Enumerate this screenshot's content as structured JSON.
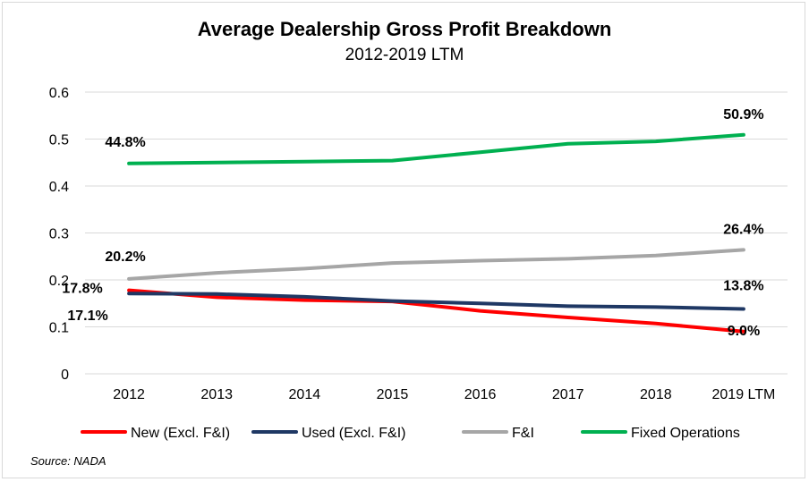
{
  "chart_data": {
    "type": "line",
    "title": "Average Dealership Gross Profit Breakdown",
    "subtitle": "2012-2019 LTM",
    "categories": [
      "2012",
      "2013",
      "2014",
      "2015",
      "2016",
      "2017",
      "2018",
      "2019 LTM"
    ],
    "ylim": [
      0,
      0.6
    ],
    "yticks": [
      "0",
      "0.1",
      "0.2",
      "0.3",
      "0.4",
      "0.5",
      "0.6"
    ],
    "grid": true,
    "legend_position": "bottom",
    "series": [
      {
        "name": "New (Excl. F&I)",
        "color": "#ff0000",
        "values": [
          0.178,
          0.163,
          0.157,
          0.154,
          0.134,
          0.12,
          0.107,
          0.09
        ],
        "labels": [
          {
            "index": 0,
            "text": "17.8%"
          },
          {
            "index": 7,
            "text": "9.0%"
          }
        ]
      },
      {
        "name": "Used (Excl. F&I)",
        "color": "#1f3864",
        "values": [
          0.171,
          0.17,
          0.164,
          0.155,
          0.15,
          0.144,
          0.142,
          0.138
        ],
        "labels": [
          {
            "index": 0,
            "text": "17.1%"
          },
          {
            "index": 7,
            "text": "13.8%"
          }
        ]
      },
      {
        "name": "F&I",
        "color": "#a6a6a6",
        "values": [
          0.202,
          0.215,
          0.224,
          0.236,
          0.241,
          0.245,
          0.252,
          0.264
        ],
        "labels": [
          {
            "index": 0,
            "text": "20.2%"
          },
          {
            "index": 7,
            "text": "26.4%"
          }
        ]
      },
      {
        "name": "Fixed Operations",
        "color": "#00b050",
        "values": [
          0.448,
          0.45,
          0.452,
          0.454,
          0.472,
          0.49,
          0.495,
          0.509
        ],
        "labels": [
          {
            "index": 0,
            "text": "44.8%"
          },
          {
            "index": 7,
            "text": "50.9%"
          }
        ]
      }
    ],
    "source": "Source: NADA"
  }
}
